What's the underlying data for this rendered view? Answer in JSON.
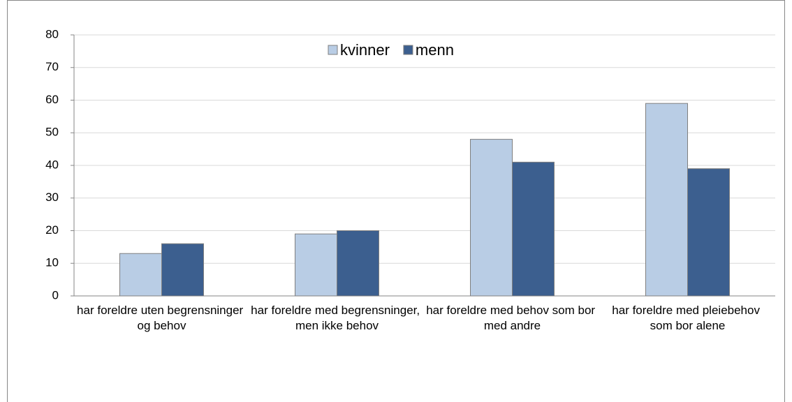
{
  "chart_data": {
    "type": "bar",
    "categories": [
      "har foreldre uten begrensninger og behov",
      "har foreldre med begrensninger, men ikke behov",
      "har foreldre med behov som bor med andre",
      "har foreldre med pleiebehov som bor alene"
    ],
    "series": [
      {
        "name": "kvinner",
        "color": "#b9cde5",
        "values": [
          13,
          19,
          48,
          59
        ]
      },
      {
        "name": "menn",
        "color": "#3c5f8f",
        "values": [
          16,
          20,
          41,
          39
        ]
      }
    ],
    "ylim": [
      0,
      80
    ],
    "yticks": [
      0,
      10,
      20,
      30,
      40,
      50,
      60,
      70,
      80
    ],
    "grid": true,
    "legend": "top"
  }
}
